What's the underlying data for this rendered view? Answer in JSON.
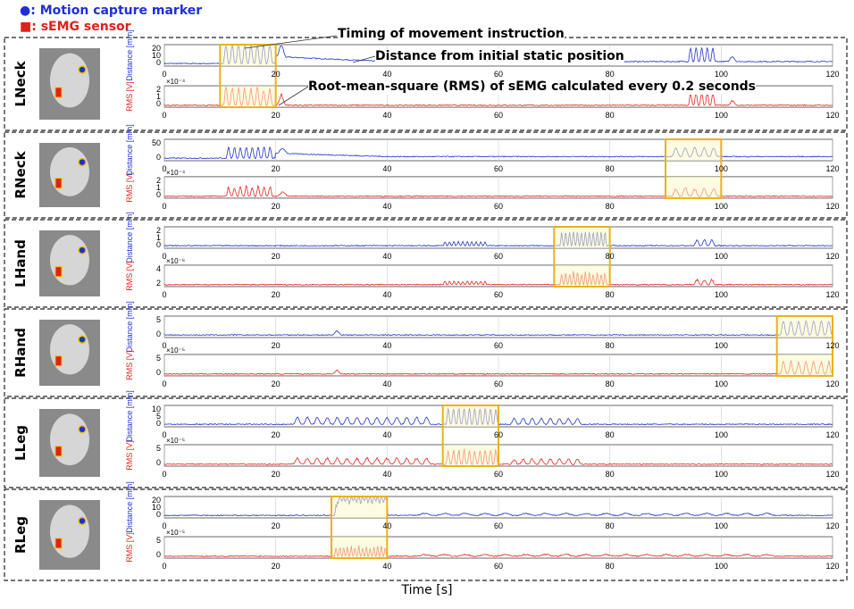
{
  "legend": {
    "marker_label": "●: Motion capture marker",
    "sensor_label": "■: sEMG sensor",
    "marker_color": "#1f2fd6",
    "sensor_color": "#e0201b"
  },
  "annotations": {
    "timing": "Timing of movement instruction",
    "distance": "Distance from initial static position",
    "rms": "Root-mean-square (RMS) of sEMG calculated every 0.2 seconds"
  },
  "x_axis_label": "Time [s]",
  "colors": {
    "distance": "#2233cc",
    "rms": "#e8231c",
    "highlight_fill": "#fbf7c8",
    "highlight_border": "#e9b11d"
  },
  "chart_data": [
    {
      "type": "line",
      "title": "LNeck",
      "xlim": [
        0,
        120
      ],
      "xticks": [
        0,
        20,
        40,
        60,
        80,
        100,
        120
      ],
      "distance": {
        "ylabel": "Distance [mm]",
        "yticks": [
          "0",
          "10",
          "20"
        ],
        "ylim": [
          0,
          25
        ]
      },
      "rms": {
        "ylabel": "RMS [V]",
        "yticks": [
          "0",
          "1",
          "2"
        ],
        "ylim": [
          0,
          2.5
        ],
        "exponent": "×10⁻⁴"
      },
      "highlight": [
        10,
        20
      ],
      "events": [
        [
          10.5,
          19.5,
          1,
          8
        ],
        [
          20,
          22,
          0.6,
          1
        ],
        [
          94,
          99,
          0.7,
          5
        ],
        [
          101,
          103,
          0.25,
          1
        ]
      ],
      "drift": {
        "start": 20,
        "end": 40,
        "from": 0.35,
        "to": 0.1
      }
    },
    {
      "type": "line",
      "title": "RNeck",
      "xlim": [
        0,
        120
      ],
      "xticks": [
        0,
        20,
        40,
        60,
        80,
        100,
        120
      ],
      "distance": {
        "ylabel": "Distance [mm]",
        "yticks": [
          "0",
          "50"
        ],
        "ylim": [
          0,
          60
        ]
      },
      "rms": {
        "ylabel": "RMS [V]",
        "yticks": [
          "0",
          "1",
          "2"
        ],
        "ylim": [
          0,
          2.5
        ],
        "exponent": "×10⁻⁴"
      },
      "highlight": [
        90,
        100
      ],
      "events": [
        [
          11,
          19.5,
          0.55,
          8
        ],
        [
          20,
          22.5,
          0.25,
          1
        ],
        [
          91,
          99.5,
          0.45,
          5
        ]
      ],
      "drift": {
        "start": 20,
        "end": 40,
        "from": 0.25,
        "to": 0.08
      }
    },
    {
      "type": "line",
      "title": "LHand",
      "xlim": [
        0,
        120
      ],
      "xticks": [
        0,
        20,
        40,
        60,
        80,
        100,
        120
      ],
      "distance": {
        "ylabel": "Distance [mm]",
        "yticks": [
          "0",
          "1",
          "2"
        ],
        "ylim": [
          0,
          2.5
        ]
      },
      "rms": {
        "ylabel": "RMS [V]",
        "yticks": [
          "2",
          "4"
        ],
        "ylim": [
          1,
          5
        ],
        "exponent": "×10⁻⁶"
      },
      "highlight": [
        70,
        80
      ],
      "events": [
        [
          71,
          79.5,
          0.7,
          12
        ],
        [
          50,
          58,
          0.2,
          10
        ],
        [
          95,
          99,
          0.3,
          3
        ]
      ],
      "drift": null
    },
    {
      "type": "line",
      "title": "RHand",
      "xlim": [
        0,
        120
      ],
      "xticks": [
        0,
        20,
        40,
        60,
        80,
        100,
        120
      ],
      "distance": {
        "ylabel": "Distance [mm]",
        "yticks": [
          "0",
          "5"
        ],
        "ylim": [
          -1,
          6
        ]
      },
      "rms": {
        "ylabel": "RMS [V]",
        "yticks": [
          "0",
          "5"
        ],
        "ylim": [
          0,
          8
        ],
        "exponent": "×10⁻⁵"
      },
      "highlight": [
        110,
        120
      ],
      "events": [
        [
          110.5,
          120,
          0.7,
          7
        ],
        [
          30,
          32,
          0.2,
          1
        ]
      ],
      "drift": null
    },
    {
      "type": "line",
      "title": "LLeg",
      "xlim": [
        0,
        120
      ],
      "xticks": [
        0,
        20,
        40,
        60,
        80,
        100,
        120
      ],
      "distance": {
        "ylabel": "Distance [mm]",
        "yticks": [
          "0",
          "5",
          "10"
        ],
        "ylim": [
          0,
          14
        ]
      },
      "rms": {
        "ylabel": "RMS [V]",
        "yticks": [
          "0",
          "5"
        ],
        "ylim": [
          0,
          8
        ],
        "exponent": "×10⁻⁵"
      },
      "highlight": [
        50,
        60
      ],
      "events": [
        [
          50.5,
          60,
          0.8,
          10
        ],
        [
          23,
          48,
          0.35,
          14
        ],
        [
          62,
          75,
          0.3,
          8
        ]
      ],
      "drift": null
    },
    {
      "type": "line",
      "title": "RLeg",
      "xlim": [
        0,
        120
      ],
      "xticks": [
        0,
        20,
        40,
        60,
        80,
        100,
        120
      ],
      "distance": {
        "ylabel": "Distance [mm]",
        "yticks": [
          "0",
          "10",
          "20"
        ],
        "ylim": [
          0,
          22
        ]
      },
      "rms": {
        "ylabel": "RMS [V]",
        "yticks": [
          "0",
          "5"
        ],
        "ylim": [
          0,
          8
        ],
        "exponent": "×10⁻⁵"
      },
      "highlight": [
        30,
        40
      ],
      "events": [
        [
          30.5,
          40,
          0.55,
          14
        ],
        [
          45,
          110,
          0.1,
          18
        ]
      ],
      "plateau": [
        31,
        40,
        0.75
      ],
      "drift": null
    }
  ]
}
